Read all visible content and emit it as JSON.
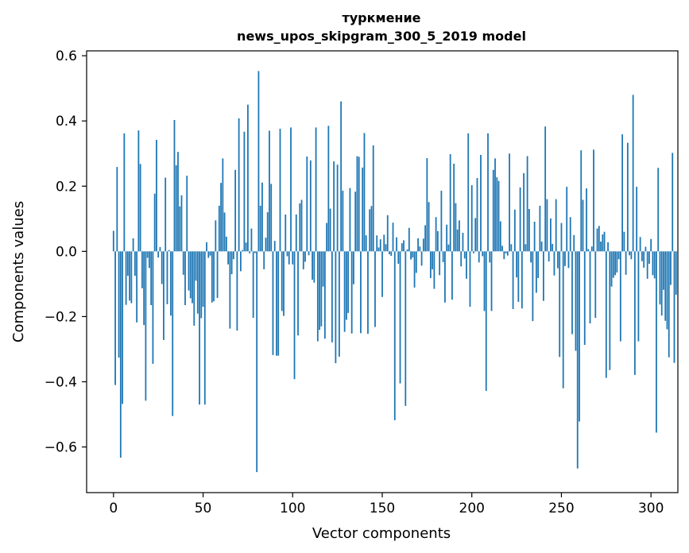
{
  "chart_data": {
    "type": "bar",
    "title_line1": "туркмение",
    "title_line2": "news_upos_skipgram_300_5_2019 model",
    "xlabel": "Vector components",
    "ylabel": "Components values",
    "xlim": [
      -15,
      315
    ],
    "ylim": [
      -0.74,
      0.615
    ],
    "x_ticks": [
      0,
      50,
      100,
      150,
      200,
      250,
      300
    ],
    "x_tick_labels": [
      "0",
      "50",
      "100",
      "150",
      "200",
      "250",
      "300"
    ],
    "y_ticks": [
      -0.6,
      -0.4,
      -0.2,
      0.0,
      0.2,
      0.4,
      0.6
    ],
    "y_tick_labels": [
      "−0.6",
      "−0.4",
      "−0.2",
      "0.0",
      "0.2",
      "0.4",
      "0.6"
    ],
    "bar_color": "#1f77b4",
    "grid": false,
    "x_start": 0,
    "values": [
      0.063,
      -0.41,
      0.259,
      -0.326,
      -0.633,
      -0.468,
      0.362,
      -0.164,
      -0.075,
      -0.151,
      -0.159,
      0.04,
      -0.075,
      -0.218,
      0.371,
      0.268,
      -0.113,
      -0.226,
      -0.458,
      -0.02,
      -0.051,
      -0.165,
      -0.345,
      0.177,
      0.342,
      -0.019,
      0.013,
      -0.1,
      -0.272,
      0.226,
      -0.162,
      0.004,
      -0.197,
      -0.505,
      0.403,
      0.264,
      0.305,
      0.138,
      0.172,
      -0.072,
      -0.165,
      0.232,
      -0.12,
      -0.144,
      -0.159,
      -0.228,
      -0.09,
      -0.191,
      -0.47,
      -0.205,
      -0.17,
      -0.47,
      0.028,
      -0.02,
      -0.013,
      -0.157,
      -0.153,
      0.095,
      -0.143,
      0.14,
      0.21,
      0.285,
      0.119,
      0.045,
      -0.04,
      -0.237,
      -0.07,
      -0.024,
      0.25,
      -0.243,
      0.408,
      -0.061,
      0.004,
      0.367,
      0.027,
      0.45,
      -0.006,
      0.07,
      -0.204,
      -0.005,
      -0.677,
      0.553,
      0.14,
      0.211,
      -0.055,
      0.042,
      0.12,
      0.37,
      0.207,
      -0.318,
      0.032,
      -0.32,
      -0.32,
      0.376,
      -0.183,
      -0.198,
      0.113,
      -0.015,
      -0.04,
      0.38,
      -0.04,
      -0.392,
      0.113,
      -0.258,
      0.147,
      0.158,
      -0.055,
      -0.032,
      0.291,
      -0.012,
      0.279,
      -0.087,
      -0.096,
      0.38,
      -0.276,
      -0.241,
      -0.23,
      -0.108,
      -0.268,
      0.087,
      0.385,
      0.131,
      -0.279,
      0.276,
      -0.343,
      0.266,
      -0.323,
      0.46,
      0.186,
      -0.247,
      -0.21,
      -0.189,
      0.194,
      -0.252,
      -0.101,
      0.183,
      0.292,
      0.29,
      -0.251,
      0.257,
      0.363,
      0.049,
      -0.253,
      0.129,
      0.139,
      0.325,
      -0.232,
      0.049,
      0.012,
      0.037,
      -0.14,
      0.051,
      0.022,
      0.111,
      -0.009,
      -0.014,
      0.088,
      -0.518,
      0.043,
      -0.038,
      -0.405,
      0.025,
      0.034,
      -0.474,
      0.006,
      0.072,
      -0.025,
      -0.019,
      -0.111,
      -0.066,
      0.04,
      0.015,
      -0.044,
      0.039,
      0.08,
      0.286,
      0.151,
      -0.082,
      -0.055,
      -0.115,
      0.105,
      0.062,
      -0.073,
      0.186,
      -0.033,
      -0.157,
      0.082,
      0.021,
      0.298,
      -0.148,
      0.269,
      0.148,
      0.067,
      0.095,
      -0.046,
      0.057,
      -0.022,
      -0.084,
      0.362,
      -0.17,
      0.203,
      -0.006,
      0.102,
      0.225,
      -0.034,
      0.296,
      -0.015,
      -0.183,
      -0.428,
      0.362,
      -0.034,
      -0.183,
      0.25,
      0.285,
      0.227,
      0.216,
      0.092,
      0.017,
      -0.024,
      -0.006,
      -0.013,
      0.3,
      0.022,
      -0.177,
      0.128,
      -0.08,
      -0.155,
      0.196,
      -0.175,
      0.24,
      0.022,
      0.292,
      0.13,
      -0.034,
      -0.214,
      0.091,
      -0.127,
      -0.082,
      0.14,
      0.03,
      -0.152,
      0.383,
      0.16,
      -0.031,
      0.101,
      0.023,
      -0.074,
      0.16,
      -0.052,
      -0.324,
      0.087,
      -0.42,
      -0.045,
      0.198,
      -0.051,
      0.105,
      -0.254,
      0.05,
      -0.305,
      -0.666,
      -0.522,
      0.31,
      0.158,
      -0.287,
      0.193,
      0.007,
      -0.221,
      0.015,
      0.312,
      -0.204,
      0.07,
      0.078,
      0.03,
      0.052,
      0.06,
      -0.388,
      0.028,
      -0.364,
      -0.108,
      -0.081,
      -0.073,
      -0.065,
      -0.024,
      -0.276,
      0.359,
      0.06,
      -0.072,
      0.333,
      -0.012,
      -0.024,
      0.48,
      -0.379,
      0.198,
      -0.276,
      0.044,
      -0.03,
      -0.05,
      0.014,
      -0.084,
      -0.038,
      0.038,
      -0.073,
      -0.083,
      -0.556,
      0.256,
      -0.163,
      -0.197,
      -0.118,
      -0.213,
      -0.239,
      -0.325,
      -0.103,
      0.302,
      -0.342,
      -0.133
    ]
  }
}
